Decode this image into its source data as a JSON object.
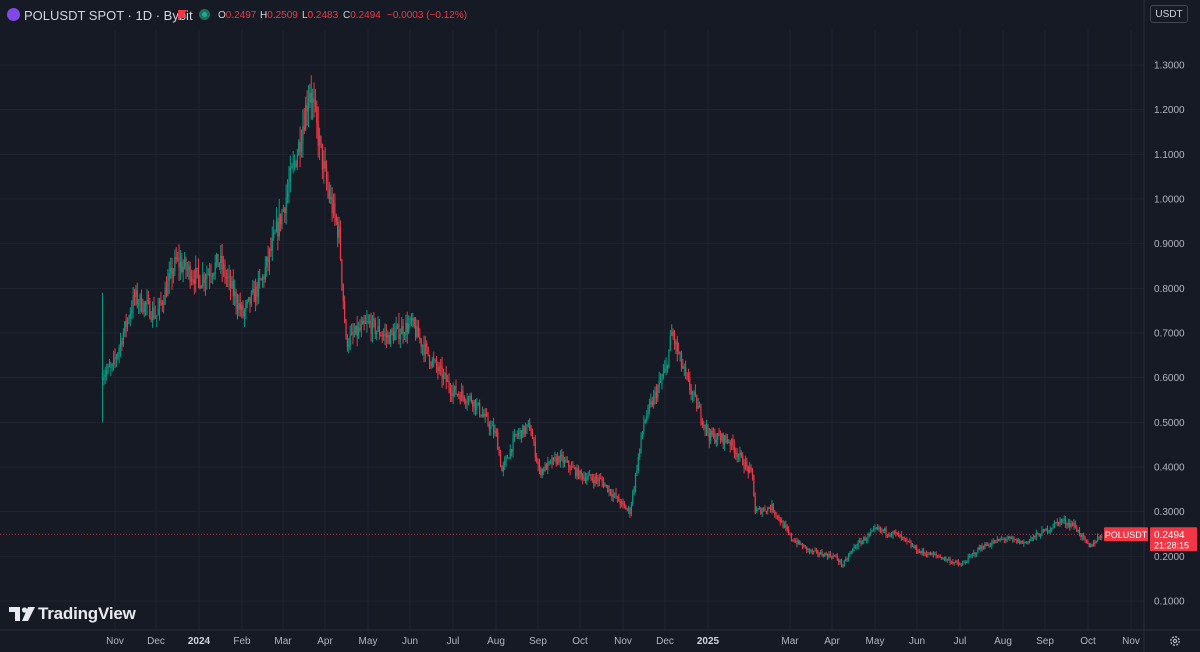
{
  "header": {
    "symbol": "POLUSDT SPOT · 1D · Bybit",
    "ohlc": [
      {
        "key": "O",
        "value": "0.2497"
      },
      {
        "key": "H",
        "value": "0.2509"
      },
      {
        "key": "L",
        "value": "0.2483"
      },
      {
        "key": "C",
        "value": "0.2494"
      }
    ],
    "change": "−0.0003 (−0.12%)",
    "currency": "USDT"
  },
  "price_label": {
    "symbol": "POLUSDT",
    "price": "0.2494",
    "countdown": "21:28:15"
  },
  "branding": {
    "logo_text": "TradingView"
  },
  "colors": {
    "background": "#161a25",
    "grid": "#1f2330",
    "up": "#089981",
    "down": "#f23645",
    "axis_text": "#b2b5be"
  },
  "chart_data": {
    "type": "candlestick",
    "title": "POLUSDT SPOT · 1D · Bybit",
    "x_tick_labels": [
      "Nov",
      "Dec",
      "2024",
      "Feb",
      "Mar",
      "Apr",
      "May",
      "Jun",
      "Jul",
      "Aug",
      "Sep",
      "Oct",
      "Nov",
      "Dec",
      "2025",
      "Mar",
      "Apr",
      "May",
      "Jun",
      "Jul",
      "Aug",
      "Sep",
      "Oct",
      "Nov"
    ],
    "y_tick_labels": [
      "1.3000",
      "1.2000",
      "1.1000",
      "1.0000",
      "0.9000",
      "0.8000",
      "0.7000",
      "0.6000",
      "0.5000",
      "0.4000",
      "0.3000",
      "0.2000",
      "0.1000"
    ],
    "ylim": [
      0.08,
      1.34
    ],
    "grid": true,
    "last_price": 0.2494,
    "x": [
      "2023-10-23",
      "2023-10-30",
      "2023-11-15",
      "2023-12-01",
      "2023-12-15",
      "2024-01-01",
      "2024-01-15",
      "2024-02-01",
      "2024-02-15",
      "2024-03-01",
      "2024-03-12",
      "2024-03-20",
      "2024-04-01",
      "2024-04-10",
      "2024-04-15",
      "2024-05-01",
      "2024-05-15",
      "2024-06-01",
      "2024-06-15",
      "2024-07-01",
      "2024-07-15",
      "2024-08-01",
      "2024-08-05",
      "2024-08-15",
      "2024-08-25",
      "2024-09-01",
      "2024-09-15",
      "2024-10-01",
      "2024-10-15",
      "2024-11-01",
      "2024-11-05",
      "2024-11-15",
      "2024-12-01",
      "2024-12-05",
      "2024-12-15",
      "2025-01-01",
      "2025-01-15",
      "2025-02-01",
      "2025-02-03",
      "2025-02-15",
      "2025-03-01",
      "2025-03-15",
      "2025-04-01",
      "2025-04-07",
      "2025-04-15",
      "2025-05-01",
      "2025-05-15",
      "2025-06-01",
      "2025-06-15",
      "2025-07-01",
      "2025-07-15",
      "2025-08-01",
      "2025-08-15",
      "2025-09-01",
      "2025-09-10",
      "2025-09-20",
      "2025-10-01",
      "2025-10-10"
    ],
    "y": [
      0.61,
      0.62,
      0.78,
      0.74,
      0.86,
      0.82,
      0.86,
      0.74,
      0.82,
      0.98,
      1.12,
      1.25,
      1.03,
      0.92,
      0.68,
      0.72,
      0.69,
      0.72,
      0.64,
      0.57,
      0.55,
      0.47,
      0.39,
      0.47,
      0.49,
      0.39,
      0.42,
      0.38,
      0.37,
      0.31,
      0.3,
      0.5,
      0.62,
      0.7,
      0.6,
      0.47,
      0.46,
      0.38,
      0.3,
      0.31,
      0.24,
      0.21,
      0.2,
      0.18,
      0.22,
      0.26,
      0.25,
      0.21,
      0.2,
      0.18,
      0.22,
      0.24,
      0.23,
      0.26,
      0.28,
      0.27,
      0.22,
      0.25
    ]
  }
}
